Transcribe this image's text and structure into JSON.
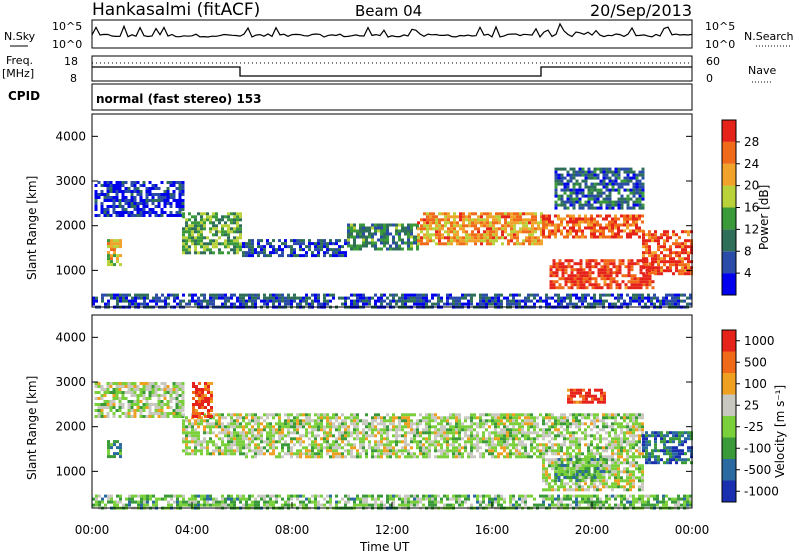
{
  "header": {
    "station": "Hankasalmi (fitACF)",
    "beam": "Beam 04",
    "date": "20/Sep/2013"
  },
  "top_panels": {
    "nsky_label": "N.Sky",
    "nsky_ticks": [
      "10^5",
      "10^0"
    ],
    "nsearch_label": "N.Search",
    "nsearch_ticks": [
      "10^5",
      "10^0"
    ],
    "freq_label_1": "Freq.",
    "freq_label_2": "[MHz]",
    "freq_ticks": [
      "18",
      "8"
    ],
    "nave_label": "Nave",
    "nave_ticks": [
      "60",
      "0"
    ],
    "cpid_label": "CPID",
    "cpid_text": "normal (fast stereo) 153"
  },
  "chart_data": [
    {
      "type": "heatmap",
      "name": "power",
      "ylabel": "Slant Range [km]",
      "ylim": [
        180,
        4500
      ],
      "yticks": [
        "1000",
        "2000",
        "3000",
        "4000"
      ],
      "xlim": [
        "00:00",
        "24:00"
      ],
      "colorbar": {
        "label": "Power [dB]",
        "ticks": [
          "4",
          "8",
          "12",
          "16",
          "20",
          "24",
          "28"
        ],
        "colors": [
          "#0000ee",
          "#2a4ba8",
          "#2f6f5a",
          "#3a9a3a",
          "#b9d23a",
          "#f0a22a",
          "#f06a1a",
          "#e6231a"
        ]
      },
      "echo_regions": [
        {
          "t0": 0.1,
          "t1": 3.6,
          "r0": 2200,
          "r1": 3000,
          "level": 0.12
        },
        {
          "t0": 3.6,
          "t1": 6.0,
          "r0": 1400,
          "r1": 2300,
          "level": 0.45
        },
        {
          "t0": 6.0,
          "t1": 10.2,
          "r0": 1300,
          "r1": 1700,
          "level": 0.18
        },
        {
          "t0": 10.2,
          "t1": 13.0,
          "r0": 1450,
          "r1": 2050,
          "level": 0.35
        },
        {
          "t0": 13.0,
          "t1": 18.0,
          "r0": 1600,
          "r1": 2300,
          "level": 0.72
        },
        {
          "t0": 18.0,
          "t1": 22.0,
          "r0": 1750,
          "r1": 2250,
          "level": 0.85
        },
        {
          "t0": 18.3,
          "t1": 22.5,
          "r0": 600,
          "r1": 1250,
          "level": 0.92
        },
        {
          "t0": 22.0,
          "t1": 24.0,
          "r0": 900,
          "r1": 1900,
          "level": 0.88
        },
        {
          "t0": 0.6,
          "t1": 1.2,
          "r0": 1150,
          "r1": 1700,
          "level": 0.6
        },
        {
          "t0": 18.5,
          "t1": 22.0,
          "r0": 2400,
          "r1": 3300,
          "level": 0.25
        },
        {
          "t0": 0.0,
          "t1": 24.0,
          "r0": 180,
          "r1": 480,
          "level": 0.2
        }
      ]
    },
    {
      "type": "heatmap",
      "name": "velocity",
      "ylabel": "Slant Range [km]",
      "ylim": [
        180,
        4500
      ],
      "yticks": [
        "1000",
        "2000",
        "3000",
        "4000"
      ],
      "xlim": [
        "00:00",
        "24:00"
      ],
      "xticks": [
        "00:00",
        "04:00",
        "08:00",
        "12:00",
        "16:00",
        "20:00",
        "00:00"
      ],
      "xlabel": "Time UT",
      "colorbar": {
        "label": "Velocity [m s⁻¹]",
        "ticks": [
          "1000",
          "500",
          "100",
          "25",
          "-25",
          "-100",
          "-500",
          "-1000"
        ],
        "colors": [
          "#1a2fb0",
          "#2a6aa0",
          "#3a9a3a",
          "#7ad03a",
          "#c8c8c0",
          "#f0a020",
          "#f06a1a",
          "#e6231a"
        ]
      },
      "echo_regions": [
        {
          "t0": 0.1,
          "t1": 3.6,
          "r0": 2200,
          "r1": 3000,
          "level": 0.5
        },
        {
          "t0": 3.6,
          "t1": 6.0,
          "r0": 1400,
          "r1": 2300,
          "level": 0.5
        },
        {
          "t0": 6.0,
          "t1": 18.0,
          "r0": 1300,
          "r1": 2300,
          "level": 0.5
        },
        {
          "t0": 18.0,
          "t1": 22.0,
          "r0": 600,
          "r1": 2300,
          "level": 0.5
        },
        {
          "t0": 22.0,
          "t1": 24.0,
          "r0": 1200,
          "r1": 1900,
          "level": 0.2
        },
        {
          "t0": 4.0,
          "t1": 4.8,
          "r0": 2200,
          "r1": 3000,
          "level": 0.88
        },
        {
          "t0": 19.0,
          "t1": 20.5,
          "r0": 2550,
          "r1": 2850,
          "level": 0.9
        },
        {
          "t0": 18.5,
          "t1": 20.5,
          "r0": 800,
          "r1": 1300,
          "level": 0.35
        },
        {
          "t0": 0.6,
          "t1": 1.2,
          "r0": 1300,
          "r1": 1700,
          "level": 0.3
        },
        {
          "t0": 0.0,
          "t1": 24.0,
          "r0": 180,
          "r1": 480,
          "level": 0.4
        }
      ]
    }
  ]
}
